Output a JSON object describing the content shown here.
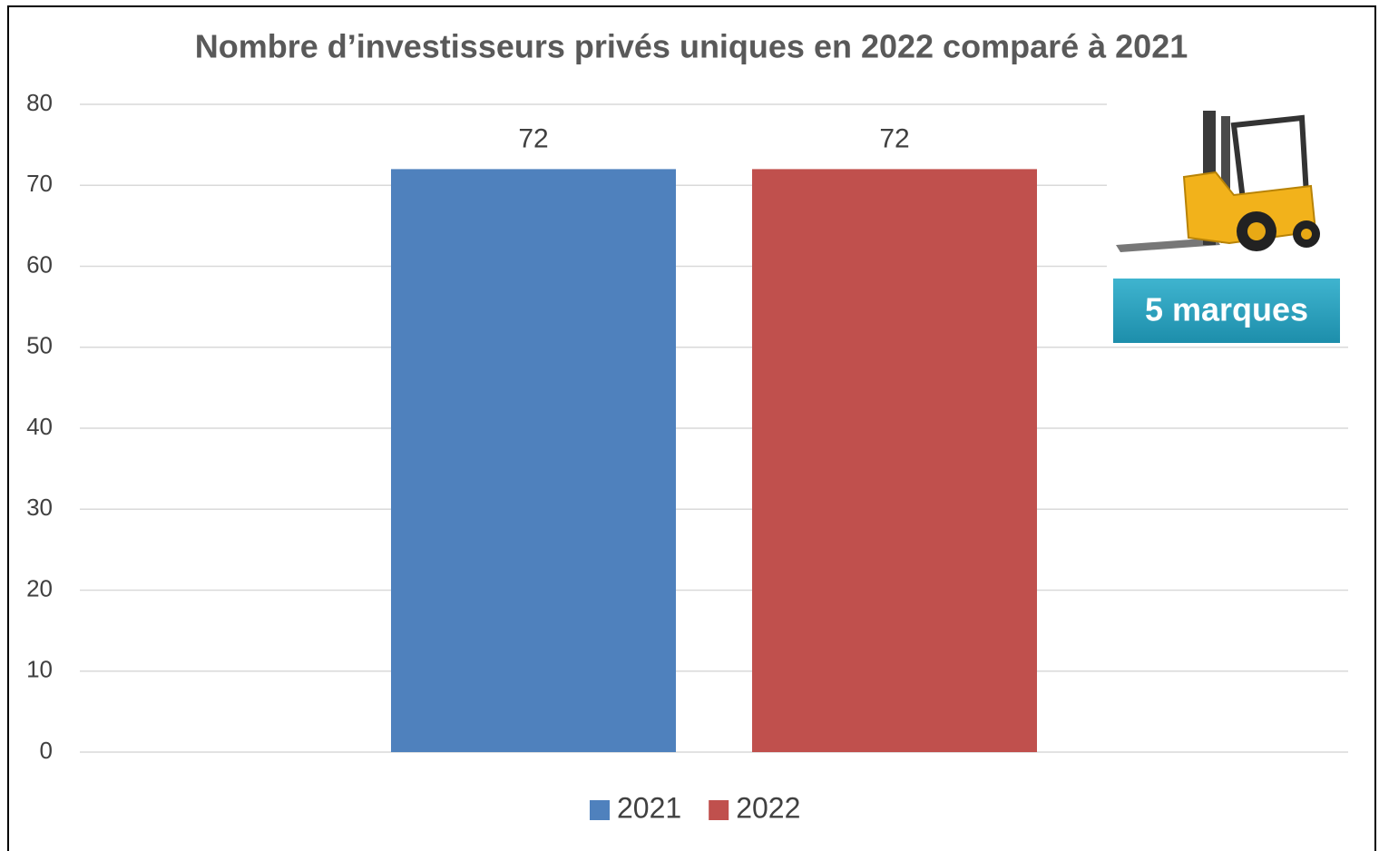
{
  "chart_data": {
    "type": "bar",
    "title": "Nombre d’investisseurs privés uniques en 2022 comparé à 2021",
    "categories": [
      null
    ],
    "series": [
      {
        "name": "2021",
        "color": "#4f81bd",
        "values": [
          72
        ]
      },
      {
        "name": "2022",
        "color": "#c0504d",
        "values": [
          72
        ]
      }
    ],
    "ylim": [
      0,
      80
    ],
    "yticks": [
      0,
      10,
      20,
      30,
      40,
      50,
      60,
      70,
      80
    ],
    "grid": true,
    "annotation": "5 marques"
  }
}
